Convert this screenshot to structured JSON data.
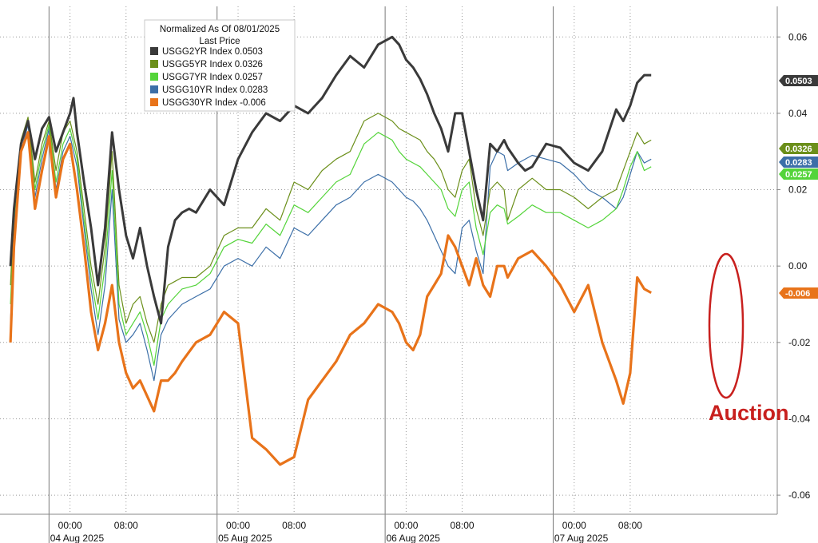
{
  "chart_data": {
    "type": "line",
    "legend": {
      "title_line1": "Normalized As Of 08/01/2025",
      "title_line2": "Last Price",
      "placement": "top-left"
    },
    "y_axis": {
      "ylim": [
        -0.065,
        0.068
      ],
      "ticks": [
        0.06,
        0.04,
        0.02,
        0.0,
        -0.02,
        -0.04,
        -0.06
      ],
      "tick_labels": [
        "0.06",
        "0.04",
        "0.02",
        "0.00",
        "-0.02",
        "-0.04",
        "-0.06"
      ],
      "side": "right"
    },
    "x_axis": {
      "range_hours": [
        -10,
        101
      ],
      "time_ticks": [
        {
          "label": "00:00",
          "hour": 0
        },
        {
          "label": "08:00",
          "hour": 8
        },
        {
          "label": "00:00",
          "hour": 24
        },
        {
          "label": "08:00",
          "hour": 32
        },
        {
          "label": "00:00",
          "hour": 48
        },
        {
          "label": "08:00",
          "hour": 56
        },
        {
          "label": "00:00",
          "hour": 72
        },
        {
          "label": "08:00",
          "hour": 80
        }
      ],
      "date_labels": [
        {
          "label": "04 Aug 2025",
          "hour": 1
        },
        {
          "label": "05 Aug 2025",
          "hour": 25
        },
        {
          "label": "06 Aug 2025",
          "hour": 49
        },
        {
          "label": "07 Aug 2025",
          "hour": 73
        }
      ],
      "day_separators_hour": [
        -3,
        21,
        45,
        69
      ]
    },
    "series": [
      {
        "name": "USGG2YR Index",
        "last": "0.0503",
        "color": "#3a3a3a",
        "x": [
          -8.5,
          -8,
          -7,
          -6,
          -5,
          -4,
          -3,
          -2,
          -1,
          0,
          0.5,
          1,
          2,
          3,
          4,
          5,
          6,
          7,
          8,
          9,
          10,
          11,
          12,
          13,
          14,
          15,
          16,
          17,
          18,
          20,
          22,
          24,
          26,
          28,
          30,
          32,
          34,
          36,
          38,
          40,
          42,
          44,
          46,
          47,
          48,
          49,
          50,
          51,
          52,
          53,
          54,
          55,
          56,
          57,
          58,
          59,
          60,
          61,
          62,
          62.5,
          64,
          65,
          66,
          68,
          70,
          72,
          74,
          76,
          78,
          79,
          80,
          81,
          82,
          83
        ],
        "values": [
          0.0,
          0.015,
          0.032,
          0.038,
          0.028,
          0.036,
          0.039,
          0.03,
          0.035,
          0.04,
          0.044,
          0.035,
          0.022,
          0.01,
          -0.005,
          0.01,
          0.035,
          0.02,
          0.008,
          0.002,
          0.01,
          0.0,
          -0.008,
          -0.015,
          0.005,
          0.012,
          0.014,
          0.015,
          0.014,
          0.02,
          0.016,
          0.028,
          0.035,
          0.04,
          0.038,
          0.042,
          0.04,
          0.044,
          0.05,
          0.055,
          0.052,
          0.058,
          0.06,
          0.058,
          0.054,
          0.052,
          0.049,
          0.045,
          0.04,
          0.036,
          0.03,
          0.04,
          0.04,
          0.03,
          0.02,
          0.012,
          0.032,
          0.03,
          0.033,
          0.031,
          0.027,
          0.025,
          0.026,
          0.032,
          0.031,
          0.027,
          0.025,
          0.03,
          0.041,
          0.038,
          0.042,
          0.048,
          0.05,
          0.05
        ]
      },
      {
        "name": "USGG5YR Index",
        "last": "0.0326",
        "color": "#6b8f1a",
        "x": [
          -8.5,
          -8,
          -7,
          -6,
          -5,
          -4,
          -3,
          -2,
          -1,
          0,
          1,
          2,
          3,
          4,
          5,
          6,
          7,
          8,
          9,
          10,
          11,
          12,
          13,
          14,
          15,
          16,
          18,
          20,
          22,
          24,
          26,
          28,
          30,
          32,
          34,
          36,
          38,
          40,
          42,
          44,
          46,
          47,
          48,
          49,
          50,
          51,
          52,
          53,
          54,
          55,
          56,
          57,
          58,
          59,
          60,
          61,
          62,
          62.5,
          64,
          66,
          68,
          70,
          72,
          74,
          76,
          78,
          79,
          80,
          81,
          82,
          83
        ],
        "values": [
          -0.005,
          0.015,
          0.033,
          0.039,
          0.022,
          0.032,
          0.038,
          0.025,
          0.035,
          0.038,
          0.03,
          0.015,
          0.0,
          -0.01,
          0.005,
          0.03,
          -0.005,
          -0.015,
          -0.01,
          -0.008,
          -0.015,
          -0.02,
          -0.01,
          -0.005,
          -0.004,
          -0.003,
          -0.003,
          0.0,
          0.008,
          0.01,
          0.01,
          0.015,
          0.012,
          0.022,
          0.02,
          0.025,
          0.028,
          0.03,
          0.038,
          0.04,
          0.038,
          0.036,
          0.035,
          0.034,
          0.033,
          0.03,
          0.028,
          0.025,
          0.02,
          0.018,
          0.025,
          0.028,
          0.015,
          0.008,
          0.02,
          0.022,
          0.02,
          0.012,
          0.02,
          0.023,
          0.02,
          0.02,
          0.018,
          0.015,
          0.018,
          0.02,
          0.025,
          0.03,
          0.035,
          0.032,
          0.033
        ]
      },
      {
        "name": "USGG7YR Index",
        "last": "0.0257",
        "color": "#54d43a",
        "x": [
          -8.5,
          -8,
          -7,
          -6,
          -5,
          -4,
          -3,
          -2,
          -1,
          0,
          1,
          2,
          3,
          4,
          5,
          6,
          7,
          8,
          9,
          10,
          11,
          12,
          13,
          14,
          15,
          16,
          18,
          20,
          22,
          24,
          26,
          28,
          30,
          32,
          34,
          36,
          38,
          40,
          42,
          44,
          46,
          47,
          48,
          49,
          50,
          51,
          52,
          53,
          54,
          55,
          56,
          57,
          58,
          59,
          60,
          61,
          62,
          62.5,
          64,
          66,
          68,
          70,
          72,
          74,
          76,
          78,
          79,
          80,
          81,
          82,
          83
        ],
        "values": [
          -0.01,
          0.012,
          0.032,
          0.038,
          0.02,
          0.03,
          0.037,
          0.022,
          0.032,
          0.036,
          0.028,
          0.012,
          -0.003,
          -0.014,
          0.0,
          0.025,
          -0.01,
          -0.018,
          -0.015,
          -0.012,
          -0.018,
          -0.026,
          -0.014,
          -0.01,
          -0.008,
          -0.006,
          -0.005,
          -0.002,
          0.005,
          0.007,
          0.006,
          0.011,
          0.008,
          0.016,
          0.014,
          0.018,
          0.022,
          0.024,
          0.032,
          0.035,
          0.033,
          0.03,
          0.028,
          0.027,
          0.026,
          0.024,
          0.022,
          0.02,
          0.015,
          0.013,
          0.02,
          0.022,
          0.01,
          0.003,
          0.014,
          0.016,
          0.015,
          0.011,
          0.013,
          0.016,
          0.014,
          0.014,
          0.012,
          0.01,
          0.012,
          0.015,
          0.02,
          0.026,
          0.03,
          0.025,
          0.026
        ]
      },
      {
        "name": "USGG10YR Index",
        "last": "0.0283",
        "color": "#3c6fa8",
        "x": [
          -8.5,
          -8,
          -7,
          -6,
          -5,
          -4,
          -3,
          -2,
          -1,
          0,
          1,
          2,
          3,
          4,
          5,
          6,
          7,
          8,
          9,
          10,
          11,
          12,
          13,
          14,
          15,
          16,
          18,
          20,
          22,
          24,
          26,
          28,
          30,
          32,
          34,
          36,
          38,
          40,
          42,
          44,
          46,
          47,
          48,
          49,
          50,
          51,
          52,
          53,
          54,
          55,
          56,
          57,
          58,
          59,
          60,
          61,
          62,
          62.5,
          64,
          66,
          68,
          70,
          72,
          74,
          76,
          78,
          79,
          80,
          81,
          82,
          83
        ],
        "values": [
          -0.015,
          0.01,
          0.03,
          0.037,
          0.018,
          0.028,
          0.036,
          0.02,
          0.03,
          0.034,
          0.026,
          0.01,
          -0.006,
          -0.018,
          -0.005,
          0.02,
          -0.014,
          -0.02,
          -0.018,
          -0.015,
          -0.022,
          -0.03,
          -0.018,
          -0.014,
          -0.012,
          -0.01,
          -0.008,
          -0.006,
          0.0,
          0.002,
          0.0,
          0.005,
          0.002,
          0.01,
          0.008,
          0.012,
          0.016,
          0.018,
          0.022,
          0.024,
          0.022,
          0.02,
          0.018,
          0.017,
          0.015,
          0.012,
          0.008,
          0.004,
          0.0,
          -0.002,
          0.01,
          0.012,
          0.004,
          -0.002,
          0.026,
          0.03,
          0.029,
          0.025,
          0.027,
          0.029,
          0.028,
          0.027,
          0.024,
          0.02,
          0.018,
          0.015,
          0.018,
          0.024,
          0.03,
          0.027,
          0.028
        ]
      },
      {
        "name": "USGG30YR Index",
        "last": "-0.006",
        "color": "#e8731a",
        "x": [
          -8.5,
          -8,
          -7,
          -6,
          -5,
          -4,
          -3,
          -2,
          -1,
          0,
          1,
          2,
          3,
          4,
          5,
          6,
          7,
          8,
          9,
          10,
          11,
          12,
          13,
          14,
          15,
          16,
          18,
          20,
          22,
          24,
          26,
          28,
          30,
          32,
          34,
          36,
          38,
          40,
          42,
          44,
          46,
          47,
          48,
          49,
          50,
          51,
          52,
          53,
          54,
          55,
          56,
          57,
          58,
          59,
          60,
          61,
          62,
          62.5,
          64,
          66,
          68,
          70,
          72,
          74,
          76,
          78,
          79,
          80,
          81,
          82,
          83
        ],
        "values": [
          -0.02,
          0.005,
          0.03,
          0.035,
          0.015,
          0.025,
          0.034,
          0.018,
          0.028,
          0.032,
          0.02,
          0.005,
          -0.012,
          -0.022,
          -0.015,
          -0.005,
          -0.02,
          -0.028,
          -0.032,
          -0.03,
          -0.034,
          -0.038,
          -0.03,
          -0.03,
          -0.028,
          -0.025,
          -0.02,
          -0.018,
          -0.012,
          -0.015,
          -0.045,
          -0.048,
          -0.052,
          -0.05,
          -0.035,
          -0.03,
          -0.025,
          -0.018,
          -0.015,
          -0.01,
          -0.012,
          -0.015,
          -0.02,
          -0.022,
          -0.018,
          -0.008,
          -0.005,
          -0.002,
          0.008,
          0.005,
          0.0,
          -0.005,
          0.002,
          -0.005,
          -0.008,
          0.0,
          0.0,
          -0.003,
          0.002,
          0.004,
          0.0,
          -0.005,
          -0.012,
          -0.005,
          -0.02,
          -0.03,
          -0.036,
          -0.028,
          -0.003,
          -0.006,
          -0.007
        ]
      }
    ],
    "annotation": {
      "text": "Auction",
      "color": "#c8201e"
    }
  }
}
